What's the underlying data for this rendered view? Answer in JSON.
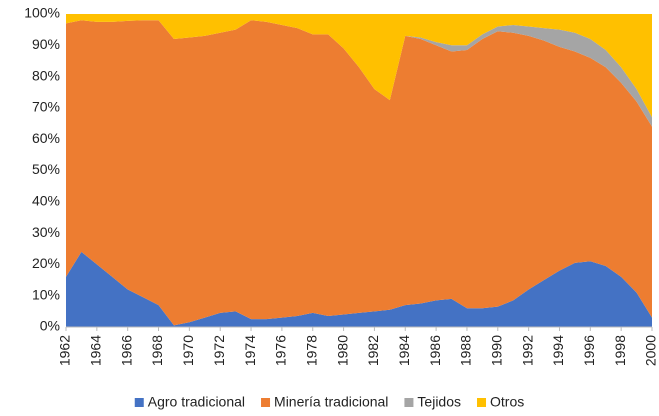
{
  "chart_data": {
    "type": "stacked_area",
    "x": [
      1962,
      1963,
      1964,
      1965,
      1966,
      1967,
      1968,
      1969,
      1970,
      1971,
      1972,
      1973,
      1974,
      1975,
      1976,
      1977,
      1978,
      1979,
      1980,
      1981,
      1982,
      1983,
      1984,
      1985,
      1986,
      1987,
      1988,
      1989,
      1990,
      1991,
      1992,
      1993,
      1994,
      1995,
      1996,
      1997,
      1998,
      1999,
      2000
    ],
    "series": [
      {
        "name": "Agro tradicional",
        "color": "#4472c4",
        "values": [
          16,
          24,
          20,
          16,
          12,
          9.5,
          7,
          0.5,
          1.5,
          3,
          4.5,
          5,
          2.5,
          2.5,
          3,
          3.5,
          4.5,
          3.5,
          4,
          4.5,
          5,
          5.5,
          7,
          7.5,
          8.5,
          9,
          6,
          6,
          6.5,
          8.5,
          12,
          15,
          18,
          20.5,
          21,
          19.5,
          16,
          11,
          3
        ]
      },
      {
        "name": "Minería tradicional",
        "color": "#ed7d31",
        "values": [
          81,
          74,
          77.5,
          81.5,
          85.8,
          88.5,
          91,
          91.5,
          91,
          90,
          89.5,
          90,
          95.5,
          95,
          93.5,
          92,
          89,
          90,
          85,
          78.5,
          71,
          67,
          86,
          84.5,
          81.5,
          79,
          82.5,
          86,
          88,
          85.5,
          81,
          76.5,
          71.5,
          67.5,
          65,
          63.5,
          62,
          61,
          61
        ]
      },
      {
        "name": "Tejidos",
        "color": "#a5a5a5",
        "values": [
          0,
          0,
          0,
          0,
          0,
          0,
          0,
          0,
          0,
          0,
          0,
          0,
          0,
          0,
          0,
          0,
          0,
          0,
          0,
          0,
          0,
          0,
          0,
          0.5,
          1,
          2,
          1.5,
          1.5,
          1.5,
          2.5,
          3,
          4,
          5.5,
          6,
          6,
          5.5,
          5,
          4,
          3
        ]
      },
      {
        "name": "Otros",
        "color": "#ffc000",
        "values": [
          3,
          2,
          2.5,
          2.5,
          2.2,
          2,
          2,
          8,
          7.5,
          7,
          6,
          5,
          2,
          2.5,
          3.5,
          4.5,
          6.5,
          6.5,
          11,
          17,
          24,
          27.5,
          7,
          7.5,
          9,
          10,
          10,
          6.5,
          4,
          3.5,
          4,
          4.5,
          5,
          6,
          8,
          11.5,
          17,
          24,
          33
        ]
      }
    ],
    "xlim": [
      1962,
      2000
    ],
    "xticks": [
      1962,
      1964,
      1966,
      1968,
      1970,
      1972,
      1974,
      1976,
      1978,
      1980,
      1982,
      1984,
      1986,
      1988,
      1990,
      1992,
      1994,
      1996,
      1998,
      2000
    ],
    "ylim": [
      0,
      100
    ],
    "yticks": [
      {
        "value": 0,
        "label": "0%"
      },
      {
        "value": 10,
        "label": "10%"
      },
      {
        "value": 20,
        "label": "20%"
      },
      {
        "value": 30,
        "label": "30%"
      },
      {
        "value": 40,
        "label": "40%"
      },
      {
        "value": 50,
        "label": "50%"
      },
      {
        "value": 60,
        "label": "60%"
      },
      {
        "value": 70,
        "label": "70%"
      },
      {
        "value": 80,
        "label": "80%"
      },
      {
        "value": 90,
        "label": "90%"
      },
      {
        "value": 100,
        "label": "100%"
      }
    ],
    "legend": "bottom"
  }
}
